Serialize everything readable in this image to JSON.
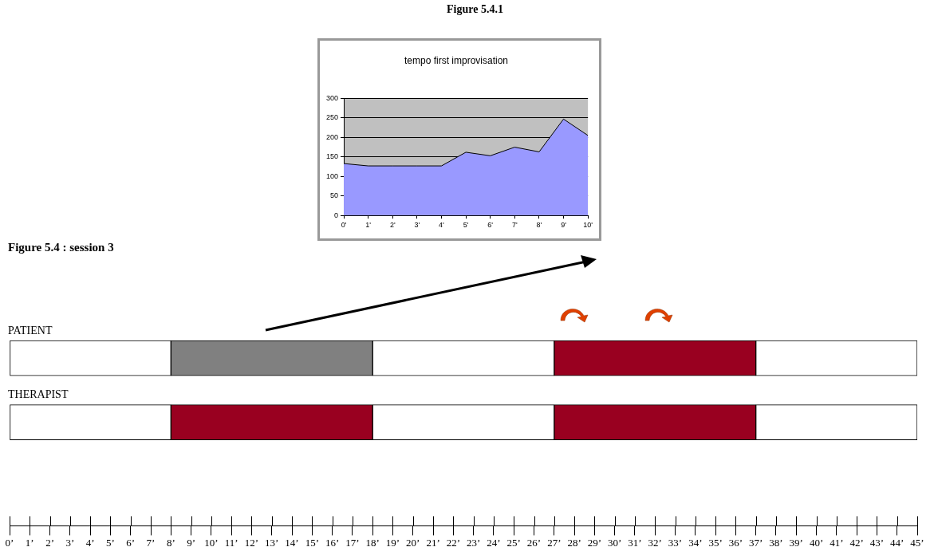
{
  "chart_data": [
    {
      "type": "area",
      "title": "tempo first improvisation",
      "annotations": [
        "Figure 5.4.1"
      ],
      "x": [
        0,
        1,
        2,
        3,
        4,
        5,
        6,
        7,
        8,
        9,
        10
      ],
      "series": [
        {
          "color": "#9999ff",
          "values": [
            133,
            127,
            127,
            127,
            127,
            162,
            153,
            175,
            163,
            247,
            205
          ]
        }
      ],
      "xlim": [
        0,
        10
      ],
      "xticks": [
        {
          "value": 0,
          "label": "0'"
        },
        {
          "value": 1,
          "label": "1'"
        },
        {
          "value": 2,
          "label": "2'"
        },
        {
          "value": 3,
          "label": "3'"
        },
        {
          "value": 4,
          "label": "4'"
        },
        {
          "value": 5,
          "label": "5'"
        },
        {
          "value": 6,
          "label": "6'"
        },
        {
          "value": 7,
          "label": "7'"
        },
        {
          "value": 8,
          "label": "8'"
        },
        {
          "value": 9,
          "label": "9'"
        },
        {
          "value": 10,
          "label": "10'"
        }
      ],
      "ylim": [
        0,
        300
      ],
      "yticks": [
        0,
        50,
        100,
        150,
        200,
        250,
        300
      ],
      "grid": "y",
      "legend": false
    },
    {
      "type": "bar",
      "orientation": "horizontal",
      "stacked": true,
      "title": "Figure 5.4 : session 3",
      "categories": [
        "PATIENT",
        "THERAPIST"
      ],
      "series": [
        {
          "color": "#ffffff",
          "values": [
            8,
            8
          ]
        },
        {
          "colors": [
            "#808080",
            "#990020"
          ],
          "values": [
            10,
            10
          ]
        },
        {
          "color": "#ffffff",
          "values": [
            9,
            9
          ]
        },
        {
          "color": "#990020",
          "values": [
            10,
            10
          ]
        },
        {
          "color": "#ffffff",
          "values": [
            8,
            8
          ]
        }
      ],
      "xlim": [
        0,
        45
      ],
      "xticks": [
        {
          "value": 0,
          "label": "0’"
        },
        {
          "value": 1,
          "label": "1’"
        },
        {
          "value": 2,
          "label": "2’"
        },
        {
          "value": 3,
          "label": "3’"
        },
        {
          "value": 4,
          "label": "4’"
        },
        {
          "value": 5,
          "label": "5’"
        },
        {
          "value": 6,
          "label": "6’"
        },
        {
          "value": 7,
          "label": "7’"
        },
        {
          "value": 8,
          "label": "8’"
        },
        {
          "value": 9,
          "label": "9’"
        },
        {
          "value": 10,
          "label": "10’"
        },
        {
          "value": 11,
          "label": "11’"
        },
        {
          "value": 12,
          "label": "12’"
        },
        {
          "value": 13,
          "label": "13’"
        },
        {
          "value": 14,
          "label": "14’"
        },
        {
          "value": 15,
          "label": "15’"
        },
        {
          "value": 16,
          "label": "16’"
        },
        {
          "value": 17,
          "label": "17’"
        },
        {
          "value": 18,
          "label": "18’"
        },
        {
          "value": 19,
          "label": "19’"
        },
        {
          "value": 20,
          "label": "20’"
        },
        {
          "value": 21,
          "label": "21’"
        },
        {
          "value": 22,
          "label": "22’"
        },
        {
          "value": 23,
          "label": "23’"
        },
        {
          "value": 24,
          "label": "24’"
        },
        {
          "value": 25,
          "label": "25’"
        },
        {
          "value": 26,
          "label": "26’"
        },
        {
          "value": 27,
          "label": "27’"
        },
        {
          "value": 28,
          "label": "28’"
        },
        {
          "value": 29,
          "label": "29’"
        },
        {
          "value": 30,
          "label": "30’"
        },
        {
          "value": 31,
          "label": "31’"
        },
        {
          "value": 32,
          "label": "32’"
        },
        {
          "value": 33,
          "label": "33’"
        },
        {
          "value": 34,
          "label": "34’"
        },
        {
          "value": 35,
          "label": "35’"
        },
        {
          "value": 36,
          "label": "36’"
        },
        {
          "value": 37,
          "label": "37’"
        },
        {
          "value": 38,
          "label": "38’"
        },
        {
          "value": 39,
          "label": "39’"
        },
        {
          "value": 40,
          "label": "40’"
        },
        {
          "value": 41,
          "label": "41’"
        },
        {
          "value": 42,
          "label": "42’"
        },
        {
          "value": 43,
          "label": "43’"
        },
        {
          "value": 44,
          "label": "44’"
        },
        {
          "value": 45,
          "label": "45’"
        }
      ],
      "grid": false,
      "legend": false
    }
  ]
}
